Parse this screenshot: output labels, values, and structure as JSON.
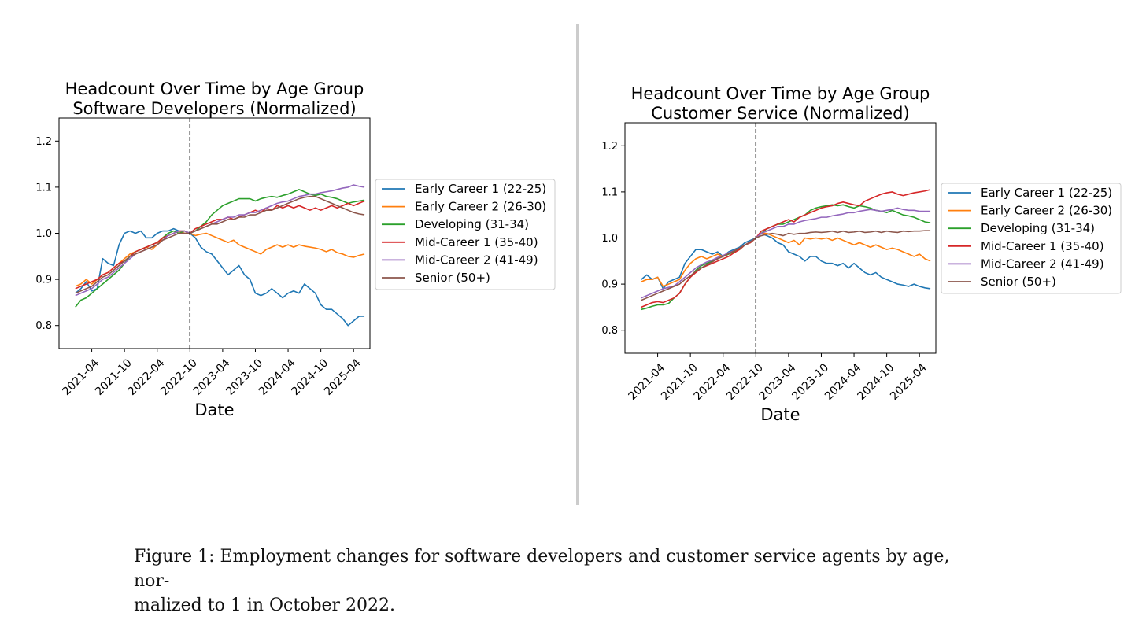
{
  "caption": {
    "text": "Figure 1: Employment changes for software developers and customer service agents by age, normalized to 1 in October 2022.",
    "line1": "Figure 1:  Employment changes for software developers and customer service agents by age, nor-",
    "line2": "malized to 1 in October 2022."
  },
  "colors": {
    "early1": "#1f77b4",
    "early2": "#ff7f0e",
    "developing": "#2ca02c",
    "mid1": "#d62728",
    "mid2": "#9467bd",
    "senior": "#8c564b"
  },
  "chart_data": [
    {
      "type": "line",
      "title": "Headcount Over Time by Age Group",
      "subtitle": "Software Developers (Normalized)",
      "xlabel": "Date",
      "ylabel": "",
      "ylim": [
        0.75,
        1.25
      ],
      "xlim": [
        "2020-10",
        "2025-07"
      ],
      "xticks": [
        "2021-04",
        "2021-10",
        "2022-04",
        "2022-10",
        "2023-04",
        "2023-10",
        "2024-04",
        "2024-10",
        "2025-04"
      ],
      "yticks": [
        0.8,
        0.9,
        1.0,
        1.1,
        1.2
      ],
      "ytick_labels": [
        "0.8",
        "0.9",
        "1.0",
        "1.1",
        "1.2"
      ],
      "grid": false,
      "legend_position": "outside-right",
      "vline": "2022-10",
      "x": [
        "2021-01",
        "2021-02",
        "2021-03",
        "2021-04",
        "2021-05",
        "2021-06",
        "2021-07",
        "2021-08",
        "2021-09",
        "2021-10",
        "2021-11",
        "2021-12",
        "2022-01",
        "2022-02",
        "2022-03",
        "2022-04",
        "2022-05",
        "2022-06",
        "2022-07",
        "2022-08",
        "2022-09",
        "2022-10",
        "2022-11",
        "2022-12",
        "2023-01",
        "2023-02",
        "2023-03",
        "2023-04",
        "2023-05",
        "2023-06",
        "2023-07",
        "2023-08",
        "2023-09",
        "2023-10",
        "2023-11",
        "2023-12",
        "2024-01",
        "2024-02",
        "2024-03",
        "2024-04",
        "2024-05",
        "2024-06",
        "2024-07",
        "2024-08",
        "2024-09",
        "2024-10",
        "2024-11",
        "2024-12",
        "2025-01",
        "2025-02",
        "2025-03",
        "2025-04",
        "2025-05",
        "2025-06"
      ],
      "series": [
        {
          "name": "Early Career 1 (22-25)",
          "color_key": "early1",
          "values": [
            0.87,
            0.88,
            0.895,
            0.875,
            0.88,
            0.945,
            0.935,
            0.93,
            0.975,
            1.0,
            1.005,
            1.0,
            1.005,
            0.99,
            0.99,
            1.0,
            1.005,
            1.005,
            1.01,
            1.005,
            1.0,
            1.0,
            0.99,
            0.97,
            0.96,
            0.955,
            0.94,
            0.925,
            0.91,
            0.92,
            0.93,
            0.91,
            0.9,
            0.87,
            0.865,
            0.87,
            0.88,
            0.87,
            0.86,
            0.87,
            0.875,
            0.87,
            0.89,
            0.88,
            0.87,
            0.845,
            0.835,
            0.835,
            0.825,
            0.815,
            0.8,
            0.81,
            0.82,
            0.82
          ]
        },
        {
          "name": "Early Career 2 (26-30)",
          "color_key": "early2",
          "values": [
            0.885,
            0.89,
            0.9,
            0.89,
            0.9,
            0.91,
            0.915,
            0.925,
            0.935,
            0.945,
            0.955,
            0.96,
            0.965,
            0.97,
            0.965,
            0.975,
            0.99,
            0.995,
            1.0,
            1.005,
            1.0,
            1.0,
            0.995,
            0.998,
            1.0,
            0.995,
            0.99,
            0.985,
            0.98,
            0.985,
            0.975,
            0.97,
            0.965,
            0.96,
            0.955,
            0.965,
            0.97,
            0.975,
            0.97,
            0.975,
            0.97,
            0.975,
            0.972,
            0.97,
            0.968,
            0.965,
            0.96,
            0.965,
            0.958,
            0.955,
            0.95,
            0.948,
            0.952,
            0.955
          ]
        },
        {
          "name": "Developing (31-34)",
          "color_key": "developing",
          "values": [
            0.84,
            0.855,
            0.86,
            0.87,
            0.88,
            0.89,
            0.9,
            0.91,
            0.92,
            0.935,
            0.95,
            0.96,
            0.965,
            0.97,
            0.975,
            0.98,
            0.99,
            1.0,
            1.005,
            1.0,
            1.005,
            1.0,
            1.005,
            1.015,
            1.025,
            1.04,
            1.05,
            1.06,
            1.065,
            1.07,
            1.075,
            1.075,
            1.075,
            1.07,
            1.075,
            1.078,
            1.08,
            1.078,
            1.082,
            1.085,
            1.09,
            1.095,
            1.09,
            1.085,
            1.082,
            1.085,
            1.08,
            1.078,
            1.075,
            1.07,
            1.065,
            1.068,
            1.07,
            1.072
          ]
        },
        {
          "name": "Mid-Career 1 (35-40)",
          "color_key": "mid1",
          "values": [
            0.88,
            0.885,
            0.89,
            0.895,
            0.9,
            0.91,
            0.915,
            0.925,
            0.935,
            0.94,
            0.95,
            0.96,
            0.965,
            0.97,
            0.975,
            0.98,
            0.99,
            0.995,
            1.0,
            1.005,
            1.005,
            1.0,
            1.01,
            1.015,
            1.02,
            1.025,
            1.03,
            1.03,
            1.035,
            1.03,
            1.035,
            1.04,
            1.045,
            1.05,
            1.045,
            1.055,
            1.05,
            1.06,
            1.055,
            1.06,
            1.055,
            1.06,
            1.055,
            1.05,
            1.055,
            1.05,
            1.055,
            1.06,
            1.055,
            1.06,
            1.065,
            1.06,
            1.065,
            1.07
          ]
        },
        {
          "name": "Mid-Career 2 (41-49)",
          "color_key": "mid2",
          "values": [
            0.865,
            0.87,
            0.875,
            0.88,
            0.89,
            0.9,
            0.905,
            0.915,
            0.925,
            0.935,
            0.945,
            0.955,
            0.96,
            0.965,
            0.97,
            0.975,
            0.985,
            0.995,
            1.0,
            1.005,
            1.005,
            1.0,
            1.005,
            1.01,
            1.015,
            1.02,
            1.025,
            1.03,
            1.035,
            1.035,
            1.04,
            1.04,
            1.045,
            1.045,
            1.05,
            1.055,
            1.06,
            1.065,
            1.068,
            1.07,
            1.075,
            1.08,
            1.082,
            1.085,
            1.085,
            1.088,
            1.09,
            1.092,
            1.095,
            1.098,
            1.1,
            1.105,
            1.102,
            1.1
          ]
        },
        {
          "name": "Senior (50+)",
          "color_key": "senior",
          "values": [
            0.87,
            0.875,
            0.88,
            0.885,
            0.895,
            0.905,
            0.91,
            0.92,
            0.93,
            0.94,
            0.95,
            0.955,
            0.96,
            0.965,
            0.97,
            0.975,
            0.985,
            0.99,
            0.995,
            1.0,
            1.0,
            1.0,
            1.005,
            1.01,
            1.015,
            1.02,
            1.02,
            1.025,
            1.03,
            1.03,
            1.035,
            1.035,
            1.04,
            1.04,
            1.045,
            1.05,
            1.05,
            1.055,
            1.06,
            1.065,
            1.07,
            1.075,
            1.078,
            1.08,
            1.08,
            1.075,
            1.07,
            1.065,
            1.06,
            1.055,
            1.05,
            1.045,
            1.042,
            1.04
          ]
        }
      ]
    },
    {
      "type": "line",
      "title": "Headcount Over Time by Age Group",
      "subtitle": "Customer Service (Normalized)",
      "xlabel": "Date",
      "ylabel": "",
      "ylim": [
        0.75,
        1.25
      ],
      "xlim": [
        "2020-10",
        "2025-07"
      ],
      "xticks": [
        "2021-04",
        "2021-10",
        "2022-04",
        "2022-10",
        "2023-04",
        "2023-10",
        "2024-04",
        "2024-10",
        "2025-04"
      ],
      "yticks": [
        0.8,
        0.9,
        1.0,
        1.1,
        1.2
      ],
      "ytick_labels": [
        "0.8",
        "0.9",
        "1.0",
        "1.1",
        "1.2"
      ],
      "grid": false,
      "legend_position": "outside-right",
      "vline": "2022-10",
      "x": [
        "2021-01",
        "2021-02",
        "2021-03",
        "2021-04",
        "2021-05",
        "2021-06",
        "2021-07",
        "2021-08",
        "2021-09",
        "2021-10",
        "2021-11",
        "2021-12",
        "2022-01",
        "2022-02",
        "2022-03",
        "2022-04",
        "2022-05",
        "2022-06",
        "2022-07",
        "2022-08",
        "2022-09",
        "2022-10",
        "2022-11",
        "2022-12",
        "2023-01",
        "2023-02",
        "2023-03",
        "2023-04",
        "2023-05",
        "2023-06",
        "2023-07",
        "2023-08",
        "2023-09",
        "2023-10",
        "2023-11",
        "2023-12",
        "2024-01",
        "2024-02",
        "2024-03",
        "2024-04",
        "2024-05",
        "2024-06",
        "2024-07",
        "2024-08",
        "2024-09",
        "2024-10",
        "2024-11",
        "2024-12",
        "2025-01",
        "2025-02",
        "2025-03",
        "2025-04",
        "2025-05",
        "2025-06"
      ],
      "series": [
        {
          "name": "Early Career 1 (22-25)",
          "color_key": "early1",
          "values": [
            0.91,
            0.92,
            0.91,
            0.915,
            0.89,
            0.905,
            0.91,
            0.915,
            0.945,
            0.96,
            0.975,
            0.975,
            0.97,
            0.965,
            0.97,
            0.96,
            0.97,
            0.975,
            0.98,
            0.99,
            0.995,
            1.0,
            1.01,
            1.005,
            1.0,
            0.99,
            0.985,
            0.97,
            0.965,
            0.96,
            0.95,
            0.96,
            0.96,
            0.95,
            0.945,
            0.945,
            0.94,
            0.945,
            0.935,
            0.945,
            0.935,
            0.925,
            0.92,
            0.925,
            0.915,
            0.91,
            0.905,
            0.9,
            0.898,
            0.895,
            0.9,
            0.895,
            0.892,
            0.89
          ]
        },
        {
          "name": "Early Career 2 (26-30)",
          "color_key": "early2",
          "values": [
            0.905,
            0.91,
            0.91,
            0.915,
            0.895,
            0.9,
            0.905,
            0.91,
            0.93,
            0.945,
            0.955,
            0.96,
            0.955,
            0.96,
            0.965,
            0.96,
            0.965,
            0.97,
            0.975,
            0.985,
            0.99,
            1.0,
            1.01,
            1.01,
            1.005,
            1.0,
            0.995,
            0.99,
            0.995,
            0.985,
            1.0,
            0.998,
            1.0,
            0.998,
            1.0,
            0.995,
            1.0,
            0.995,
            0.99,
            0.985,
            0.99,
            0.985,
            0.98,
            0.985,
            0.98,
            0.975,
            0.978,
            0.975,
            0.97,
            0.965,
            0.96,
            0.965,
            0.955,
            0.95
          ]
        },
        {
          "name": "Developing (31-34)",
          "color_key": "developing",
          "values": [
            0.845,
            0.848,
            0.852,
            0.855,
            0.855,
            0.858,
            0.87,
            0.88,
            0.9,
            0.915,
            0.93,
            0.94,
            0.945,
            0.95,
            0.955,
            0.96,
            0.965,
            0.97,
            0.975,
            0.985,
            0.99,
            1.0,
            1.01,
            1.02,
            1.025,
            1.03,
            1.03,
            1.035,
            1.04,
            1.045,
            1.05,
            1.06,
            1.065,
            1.068,
            1.07,
            1.072,
            1.07,
            1.072,
            1.068,
            1.065,
            1.07,
            1.068,
            1.065,
            1.06,
            1.058,
            1.055,
            1.06,
            1.055,
            1.05,
            1.048,
            1.045,
            1.04,
            1.035,
            1.033
          ]
        },
        {
          "name": "Mid-Career 1 (35-40)",
          "color_key": "mid1",
          "values": [
            0.85,
            0.855,
            0.86,
            0.862,
            0.86,
            0.865,
            0.87,
            0.88,
            0.9,
            0.915,
            0.925,
            0.935,
            0.94,
            0.945,
            0.95,
            0.955,
            0.96,
            0.968,
            0.975,
            0.985,
            0.99,
            1.0,
            1.015,
            1.02,
            1.025,
            1.03,
            1.035,
            1.04,
            1.035,
            1.045,
            1.05,
            1.055,
            1.06,
            1.065,
            1.068,
            1.07,
            1.075,
            1.078,
            1.075,
            1.072,
            1.07,
            1.08,
            1.085,
            1.09,
            1.095,
            1.098,
            1.1,
            1.095,
            1.092,
            1.095,
            1.098,
            1.1,
            1.102,
            1.105
          ]
        },
        {
          "name": "Mid-Career 2 (41-49)",
          "color_key": "mid2",
          "values": [
            0.87,
            0.875,
            0.88,
            0.885,
            0.89,
            0.893,
            0.896,
            0.905,
            0.915,
            0.925,
            0.935,
            0.942,
            0.948,
            0.952,
            0.958,
            0.962,
            0.968,
            0.972,
            0.978,
            0.985,
            0.992,
            1.0,
            1.01,
            1.015,
            1.02,
            1.025,
            1.025,
            1.03,
            1.03,
            1.035,
            1.038,
            1.04,
            1.042,
            1.045,
            1.045,
            1.048,
            1.05,
            1.052,
            1.055,
            1.055,
            1.058,
            1.06,
            1.062,
            1.06,
            1.058,
            1.06,
            1.062,
            1.065,
            1.062,
            1.06,
            1.06,
            1.058,
            1.058,
            1.058
          ]
        },
        {
          "name": "Senior (50+)",
          "color_key": "senior",
          "values": [
            0.865,
            0.87,
            0.875,
            0.88,
            0.885,
            0.89,
            0.895,
            0.9,
            0.91,
            0.918,
            0.928,
            0.935,
            0.942,
            0.948,
            0.955,
            0.96,
            0.966,
            0.972,
            0.978,
            0.985,
            0.992,
            1.0,
            1.005,
            1.008,
            1.01,
            1.008,
            1.005,
            1.01,
            1.008,
            1.01,
            1.01,
            1.012,
            1.013,
            1.012,
            1.013,
            1.015,
            1.012,
            1.015,
            1.012,
            1.013,
            1.015,
            1.012,
            1.013,
            1.015,
            1.012,
            1.015,
            1.013,
            1.012,
            1.015,
            1.014,
            1.015,
            1.015,
            1.016,
            1.016
          ]
        }
      ]
    }
  ]
}
